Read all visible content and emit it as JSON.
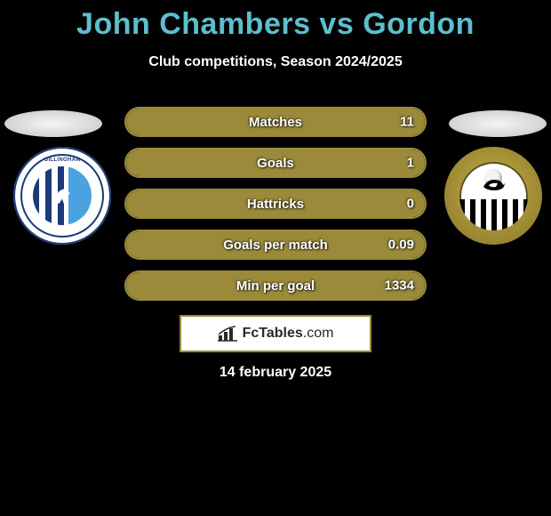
{
  "header": {
    "title": "John Chambers vs Gordon",
    "subtitle": "Club competitions, Season 2024/2025",
    "title_color": "#5dbecd"
  },
  "players": {
    "left": {
      "name": "John Chambers"
    },
    "right": {
      "name": "Gordon"
    }
  },
  "clubs": {
    "left": {
      "name": "Gillingham",
      "badge_text": "GILLINGHAM"
    },
    "right": {
      "name": "Notts County"
    }
  },
  "stats": {
    "bar_color": "#9a8a3a",
    "rows": [
      {
        "label": "Matches",
        "left": "",
        "right": "11",
        "left_pct": 50,
        "right_pct": 50
      },
      {
        "label": "Goals",
        "left": "",
        "right": "1",
        "left_pct": 50,
        "right_pct": 50
      },
      {
        "label": "Hattricks",
        "left": "",
        "right": "0",
        "left_pct": 50,
        "right_pct": 50
      },
      {
        "label": "Goals per match",
        "left": "",
        "right": "0.09",
        "left_pct": 50,
        "right_pct": 50
      },
      {
        "label": "Min per goal",
        "left": "",
        "right": "1334",
        "left_pct": 50,
        "right_pct": 50
      }
    ]
  },
  "brand": {
    "name": "FcTables",
    "suffix": ".com"
  },
  "date": "14 february 2025",
  "colors": {
    "background": "#000000",
    "accent": "#9a8a3a",
    "text": "#ffffff"
  }
}
